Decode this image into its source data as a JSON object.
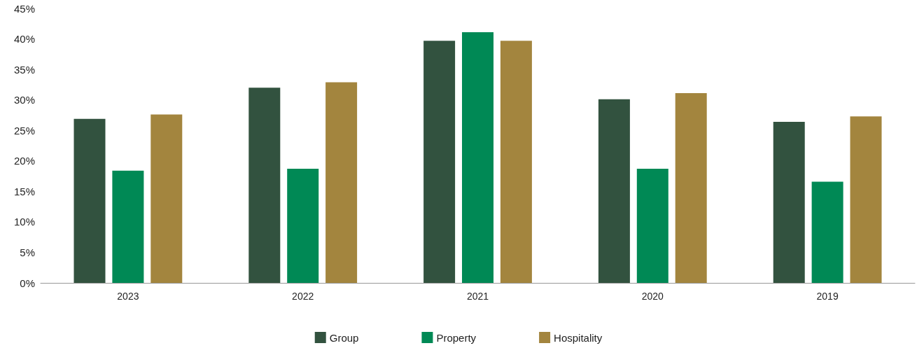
{
  "chart_data": {
    "type": "bar",
    "categories": [
      "2023",
      "2022",
      "2021",
      "2020",
      "2019"
    ],
    "series": [
      {
        "name": "Group",
        "color": "#32523f",
        "values": [
          26.9,
          32.0,
          39.7,
          30.1,
          26.4
        ]
      },
      {
        "name": "Property",
        "color": "#008955",
        "values": [
          18.4,
          18.7,
          41.1,
          18.7,
          16.6
        ]
      },
      {
        "name": "Hospitality",
        "color": "#a3853e",
        "values": [
          27.6,
          32.9,
          39.7,
          31.1,
          27.3
        ]
      }
    ],
    "ylim": [
      0,
      45
    ],
    "yticks": [
      {
        "value": 0,
        "label": "0%"
      },
      {
        "value": 5,
        "label": "5%"
      },
      {
        "value": 10,
        "label": "10%"
      },
      {
        "value": 15,
        "label": "15%"
      },
      {
        "value": 20,
        "label": "20%"
      },
      {
        "value": 25,
        "label": "25%"
      },
      {
        "value": 30,
        "label": "30%"
      },
      {
        "value": 35,
        "label": "35%"
      },
      {
        "value": 40,
        "label": "40%"
      },
      {
        "value": 45,
        "label": "45%"
      }
    ],
    "grid": false,
    "legend": "bottom"
  }
}
